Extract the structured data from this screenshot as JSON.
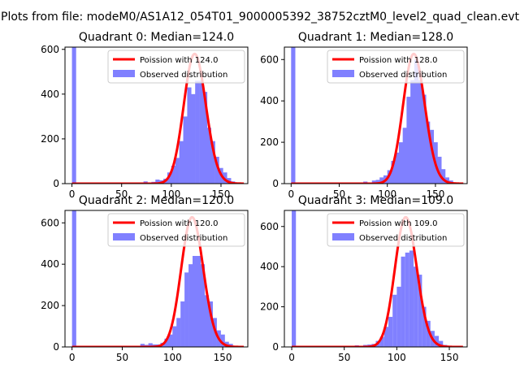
{
  "suptitle": "Plots from file: modeM0/AS1A12_054T01_9000005392_38752cztM0_level2_quad_clean.evt",
  "chart_data": [
    {
      "type": "bar",
      "title": "Quadrant 0: Median=124.0",
      "legend": [
        "Poission with 124.0",
        "Observed distribution"
      ],
      "legend_position": "upper right",
      "xlim": [
        -7,
        177
      ],
      "ylim": [
        0,
        610
      ],
      "xticks": [
        0,
        50,
        100,
        150
      ],
      "yticks": [
        0,
        200,
        400,
        600
      ],
      "bin_width": 4.2,
      "bins": [
        [
          0,
          610
        ],
        [
          63,
          2
        ],
        [
          72,
          10
        ],
        [
          80,
          8
        ],
        [
          84,
          18
        ],
        [
          88,
          15
        ],
        [
          92,
          22
        ],
        [
          96,
          50
        ],
        [
          100,
          80
        ],
        [
          104,
          115
        ],
        [
          108,
          190
        ],
        [
          112,
          300
        ],
        [
          116,
          430
        ],
        [
          120,
          400
        ],
        [
          124,
          460
        ],
        [
          128,
          460
        ],
        [
          132,
          410
        ],
        [
          136,
          250
        ],
        [
          140,
          190
        ],
        [
          144,
          120
        ],
        [
          148,
          70
        ],
        [
          152,
          50
        ],
        [
          156,
          25
        ],
        [
          160,
          10
        ],
        [
          164,
          2
        ]
      ],
      "poisson_mu": 124.0
    },
    {
      "type": "bar",
      "title": "Quadrant 1: Median=128.0",
      "legend": [
        "Poission with 128.0",
        "Observed distribution"
      ],
      "legend_position": "upper right",
      "xlim": [
        -7,
        183
      ],
      "ylim": [
        0,
        660
      ],
      "xticks": [
        0,
        50,
        100,
        150
      ],
      "yticks": [
        0,
        200,
        400,
        600
      ],
      "bin_width": 4.4,
      "bins": [
        [
          0,
          660
        ],
        [
          66,
          5
        ],
        [
          75,
          10
        ],
        [
          84,
          15
        ],
        [
          88,
          18
        ],
        [
          92,
          30
        ],
        [
          96,
          40
        ],
        [
          100,
          65
        ],
        [
          104,
          110
        ],
        [
          108,
          150
        ],
        [
          112,
          200
        ],
        [
          116,
          270
        ],
        [
          120,
          420
        ],
        [
          124,
          500
        ],
        [
          128,
          600
        ],
        [
          132,
          500
        ],
        [
          136,
          430
        ],
        [
          140,
          300
        ],
        [
          144,
          260
        ],
        [
          148,
          200
        ],
        [
          152,
          130
        ],
        [
          156,
          70
        ],
        [
          160,
          30
        ],
        [
          164,
          15
        ],
        [
          168,
          5
        ]
      ],
      "poisson_mu": 128.0
    },
    {
      "type": "bar",
      "title": "Quadrant 2: Median=120.0",
      "legend": [
        "Poission with 120.0",
        "Observed distribution"
      ],
      "legend_position": "upper right",
      "xlim": [
        -7,
        175
      ],
      "ylim": [
        0,
        660
      ],
      "xticks": [
        0,
        50,
        100,
        150
      ],
      "yticks": [
        0,
        200,
        400,
        600
      ],
      "bin_width": 4.2,
      "bins": [
        [
          0,
          660
        ],
        [
          68,
          15
        ],
        [
          72,
          10
        ],
        [
          76,
          18
        ],
        [
          80,
          12
        ],
        [
          84,
          12
        ],
        [
          88,
          20
        ],
        [
          92,
          40
        ],
        [
          96,
          60
        ],
        [
          100,
          100
        ],
        [
          104,
          140
        ],
        [
          108,
          220
        ],
        [
          112,
          360
        ],
        [
          116,
          400
        ],
        [
          120,
          440
        ],
        [
          124,
          440
        ],
        [
          128,
          400
        ],
        [
          132,
          250
        ],
        [
          136,
          220
        ],
        [
          140,
          140
        ],
        [
          144,
          80
        ],
        [
          148,
          60
        ],
        [
          152,
          25
        ],
        [
          156,
          15
        ],
        [
          160,
          5
        ]
      ],
      "poisson_mu": 120.0
    },
    {
      "type": "bar",
      "title": "Quadrant 3: Median=109.0",
      "legend": [
        "Poission with 109.0",
        "Observed distribution"
      ],
      "legend_position": "upper right",
      "xlim": [
        -7,
        167
      ],
      "ylim": [
        0,
        680
      ],
      "xticks": [
        0,
        50,
        100,
        150
      ],
      "yticks": [
        0,
        200,
        400,
        600
      ],
      "bin_width": 4.0,
      "bins": [
        [
          0,
          680
        ],
        [
          48,
          5
        ],
        [
          60,
          8
        ],
        [
          68,
          10
        ],
        [
          72,
          12
        ],
        [
          76,
          15
        ],
        [
          80,
          30
        ],
        [
          84,
          50
        ],
        [
          88,
          100
        ],
        [
          92,
          150
        ],
        [
          96,
          260
        ],
        [
          100,
          300
        ],
        [
          104,
          450
        ],
        [
          108,
          470
        ],
        [
          112,
          480
        ],
        [
          116,
          400
        ],
        [
          120,
          360
        ],
        [
          124,
          200
        ],
        [
          128,
          130
        ],
        [
          132,
          80
        ],
        [
          136,
          55
        ],
        [
          140,
          30
        ],
        [
          144,
          10
        ],
        [
          148,
          5
        ]
      ],
      "poisson_mu": 109.0
    }
  ],
  "colors": {
    "bars": "#8080ff",
    "poisson_line": "#ff0000",
    "axes": "#000000"
  }
}
